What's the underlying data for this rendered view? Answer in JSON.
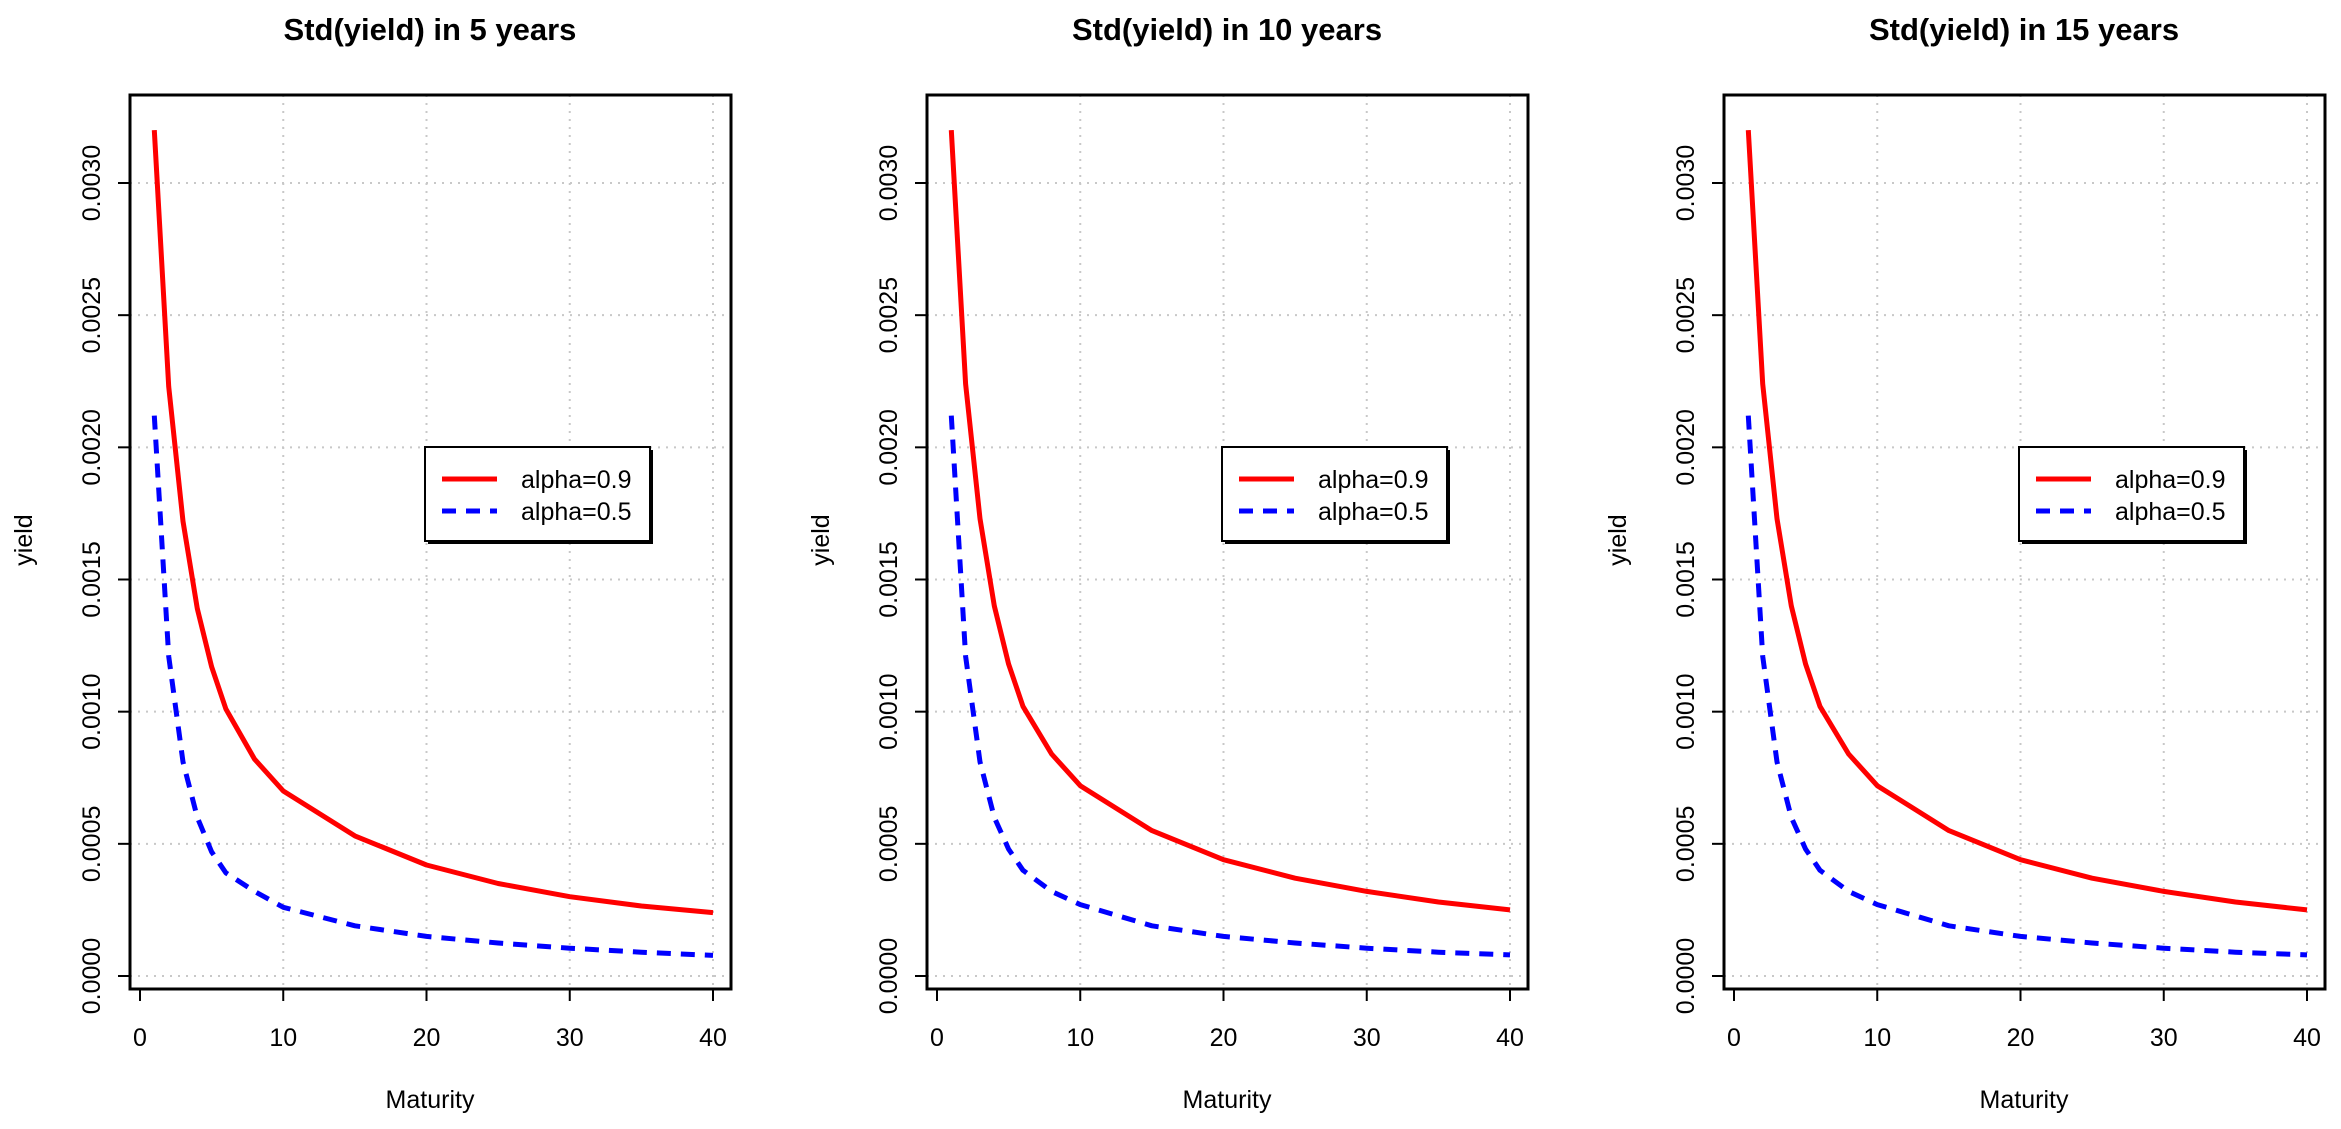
{
  "chart_data": [
    {
      "type": "line",
      "title": "Std(yield) in 5 years",
      "xlabel": "Maturity",
      "ylabel": "yield",
      "xlim": [
        0,
        40
      ],
      "ylim": [
        0,
        0.0032
      ],
      "xticks": [
        0,
        10,
        20,
        30,
        40
      ],
      "xtick_labels": [
        "0",
        "10",
        "20",
        "30",
        "40"
      ],
      "yticks": [
        0,
        0.0005,
        0.001,
        0.0015,
        0.002,
        0.0025,
        0.003
      ],
      "ytick_labels": [
        "0.0000",
        "0.0005",
        "0.0010",
        "0.0015",
        "0.0020",
        "0.0025",
        "0.0030"
      ],
      "grid": true,
      "legend_position": "center-right",
      "x": [
        1,
        2,
        3,
        4,
        5,
        6,
        8,
        10,
        15,
        20,
        25,
        30,
        35,
        40
      ],
      "series": [
        {
          "name": "alpha=0.9",
          "color": "#ff0000",
          "style": "solid",
          "values": [
            0.0032,
            0.00223,
            0.00172,
            0.00139,
            0.00117,
            0.00101,
            0.00082,
            0.0007,
            0.00053,
            0.00042,
            0.00035,
            0.0003,
            0.000265,
            0.00024
          ]
        },
        {
          "name": "alpha=0.5",
          "color": "#0000ff",
          "style": "dashed",
          "values": [
            0.00212,
            0.00121,
            0.00081,
            0.0006,
            0.00047,
            0.00039,
            0.00032,
            0.00026,
            0.00019,
            0.00015,
            0.000125,
            0.000105,
            9e-05,
            7.8e-05
          ]
        }
      ]
    },
    {
      "type": "line",
      "title": "Std(yield) in 10 years",
      "xlabel": "Maturity",
      "ylabel": "yield",
      "xlim": [
        0,
        40
      ],
      "ylim": [
        0,
        0.0032
      ],
      "xticks": [
        0,
        10,
        20,
        30,
        40
      ],
      "xtick_labels": [
        "0",
        "10",
        "20",
        "30",
        "40"
      ],
      "yticks": [
        0,
        0.0005,
        0.001,
        0.0015,
        0.002,
        0.0025,
        0.003
      ],
      "ytick_labels": [
        "0.0000",
        "0.0005",
        "0.0010",
        "0.0015",
        "0.0020",
        "0.0025",
        "0.0030"
      ],
      "grid": true,
      "legend_position": "center-right",
      "x": [
        1,
        2,
        3,
        4,
        5,
        6,
        8,
        10,
        15,
        20,
        25,
        30,
        35,
        40
      ],
      "series": [
        {
          "name": "alpha=0.9",
          "color": "#ff0000",
          "style": "solid",
          "values": [
            0.0032,
            0.00224,
            0.00173,
            0.0014,
            0.00118,
            0.00102,
            0.00084,
            0.00072,
            0.00055,
            0.00044,
            0.00037,
            0.00032,
            0.00028,
            0.00025
          ]
        },
        {
          "name": "alpha=0.5",
          "color": "#0000ff",
          "style": "dashed",
          "values": [
            0.00212,
            0.00121,
            0.00081,
            0.0006,
            0.00048,
            0.0004,
            0.00032,
            0.00027,
            0.00019,
            0.00015,
            0.000125,
            0.000105,
            9e-05,
            8e-05
          ]
        }
      ]
    },
    {
      "type": "line",
      "title": "Std(yield) in 15 years",
      "xlabel": "Maturity",
      "ylabel": "yield",
      "xlim": [
        0,
        40
      ],
      "ylim": [
        0,
        0.0032
      ],
      "xticks": [
        0,
        10,
        20,
        30,
        40
      ],
      "xtick_labels": [
        "0",
        "10",
        "20",
        "30",
        "40"
      ],
      "yticks": [
        0,
        0.0005,
        0.001,
        0.0015,
        0.002,
        0.0025,
        0.003
      ],
      "ytick_labels": [
        "0.0000",
        "0.0005",
        "0.0010",
        "0.0015",
        "0.0020",
        "0.0025",
        "0.0030"
      ],
      "grid": true,
      "legend_position": "center-right",
      "x": [
        1,
        2,
        3,
        4,
        5,
        6,
        8,
        10,
        15,
        20,
        25,
        30,
        35,
        40
      ],
      "series": [
        {
          "name": "alpha=0.9",
          "color": "#ff0000",
          "style": "solid",
          "values": [
            0.0032,
            0.00224,
            0.00173,
            0.0014,
            0.00118,
            0.00102,
            0.00084,
            0.00072,
            0.00055,
            0.00044,
            0.00037,
            0.00032,
            0.00028,
            0.00025
          ]
        },
        {
          "name": "alpha=0.5",
          "color": "#0000ff",
          "style": "dashed",
          "values": [
            0.00212,
            0.00121,
            0.00081,
            0.0006,
            0.00048,
            0.0004,
            0.00032,
            0.00027,
            0.00019,
            0.00015,
            0.000125,
            0.000105,
            9e-05,
            8e-05
          ]
        }
      ]
    }
  ]
}
